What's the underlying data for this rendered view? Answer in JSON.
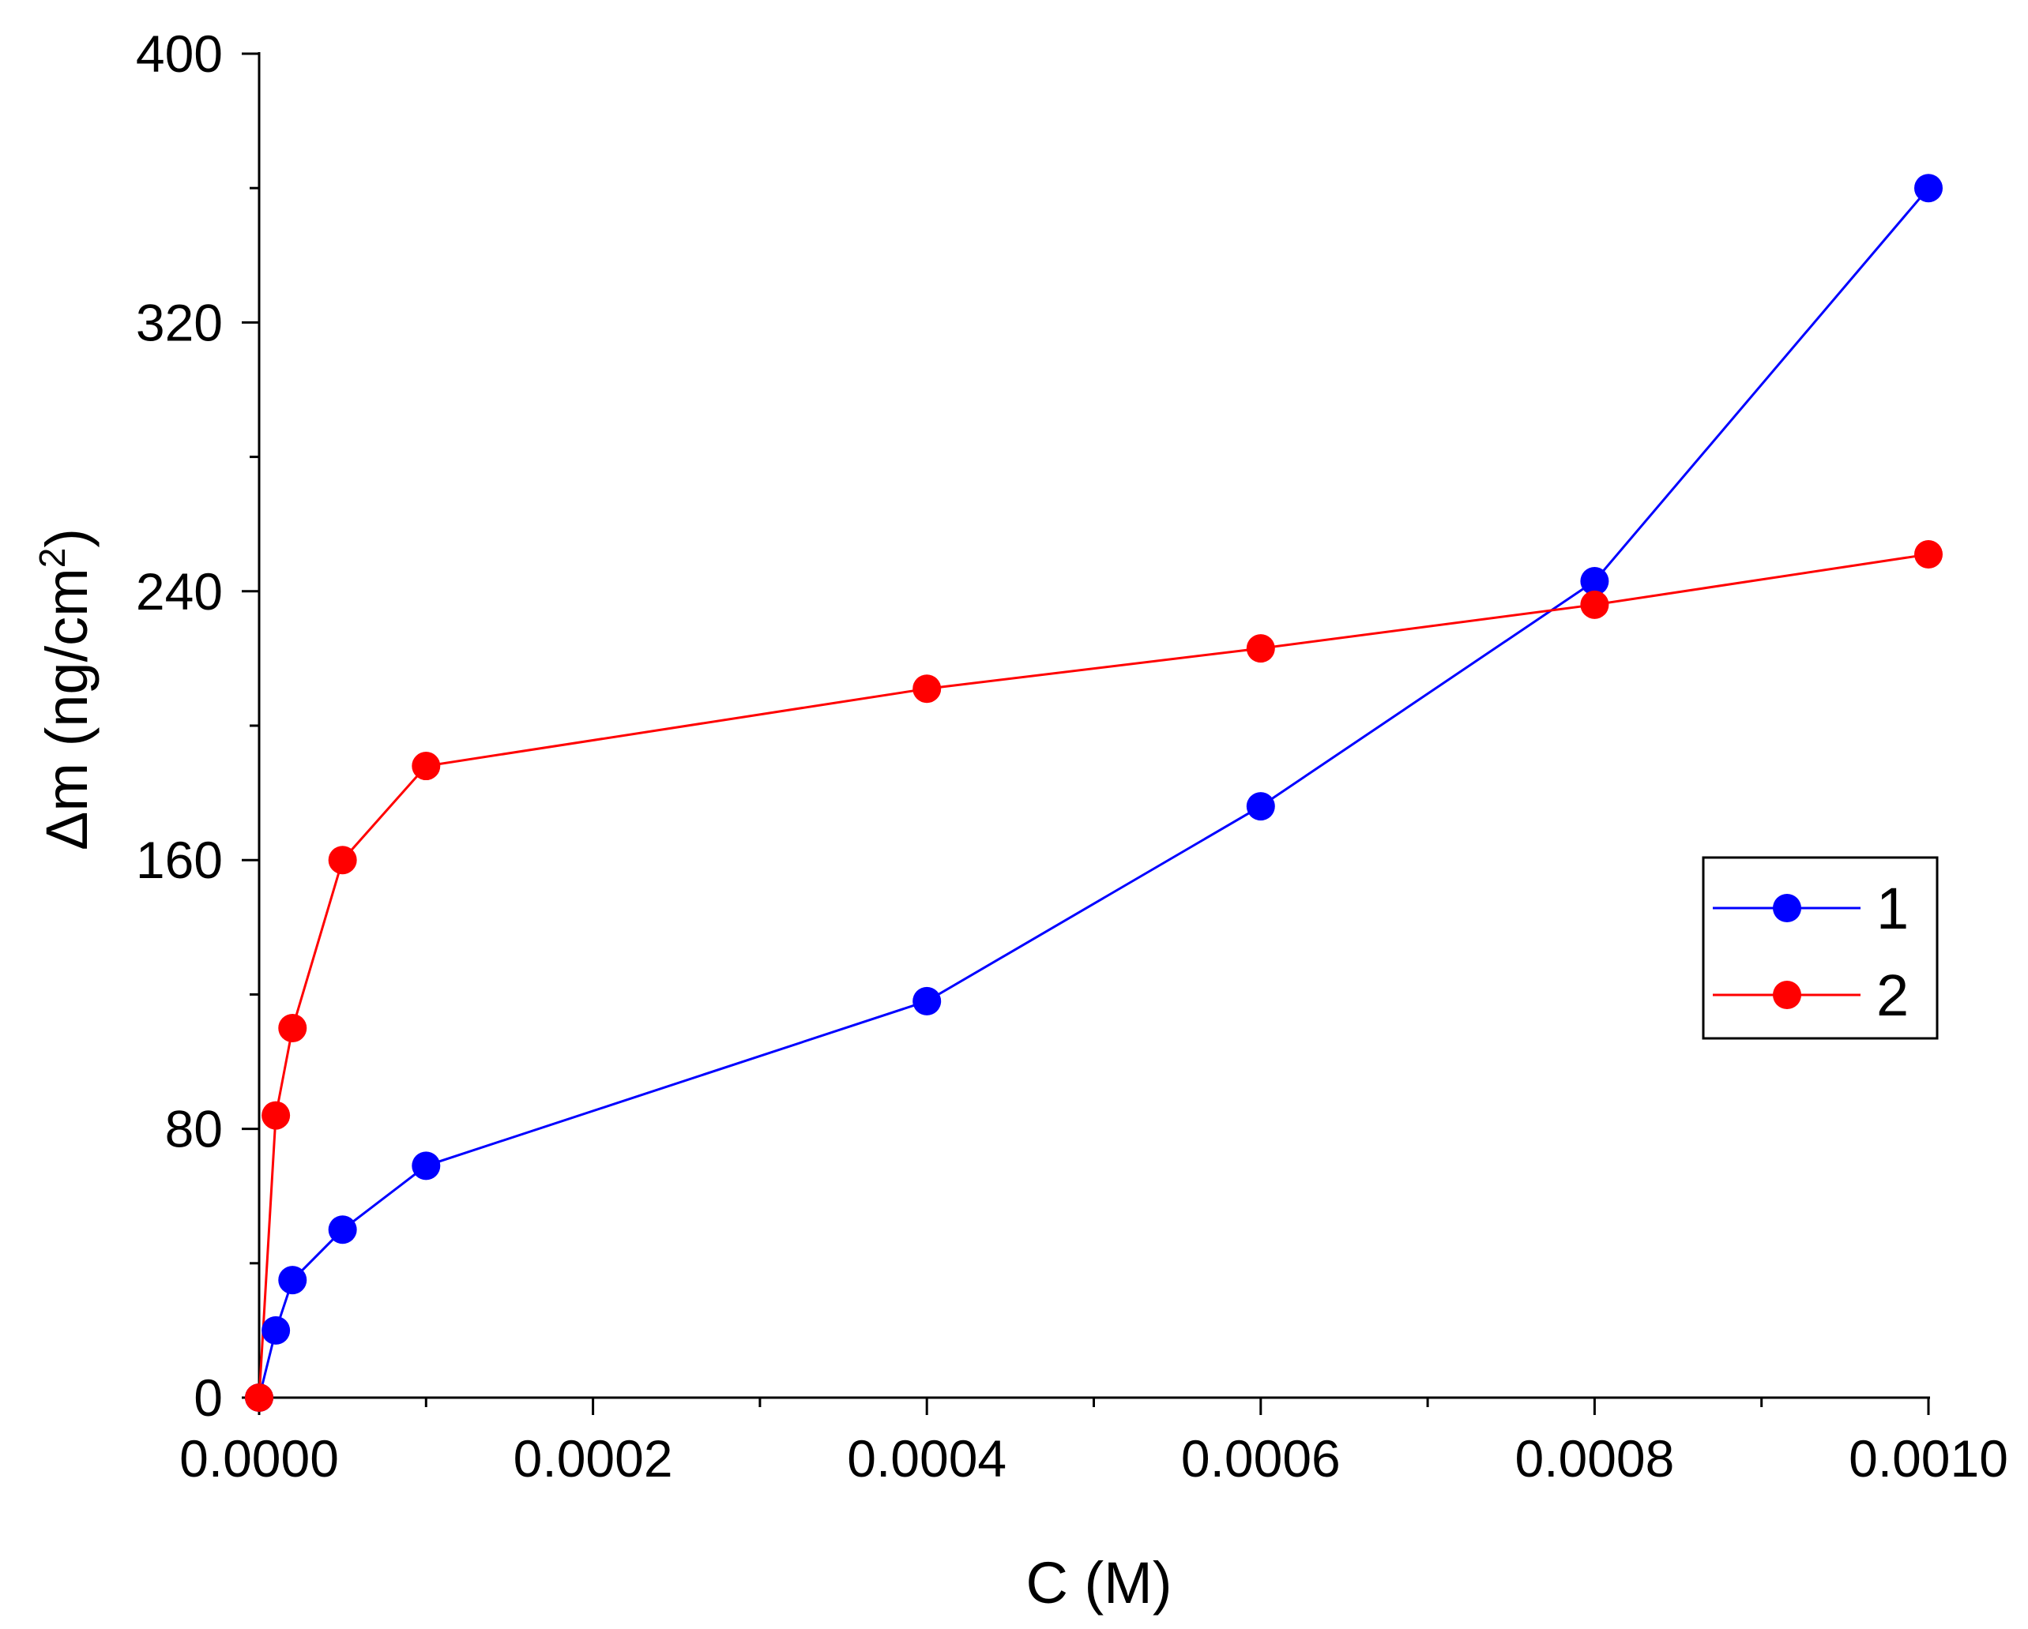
{
  "chart_data": {
    "type": "line",
    "title": "",
    "xlabel": "C (M)",
    "ylabel_main": "Δm (ng/cm",
    "ylabel_sup": "2",
    "ylabel_close": ")",
    "xlim": [
      0,
      0.001
    ],
    "ylim": [
      0,
      400
    ],
    "x_ticks": [
      {
        "value": 0.0,
        "label": "0.0000"
      },
      {
        "value": 0.0002,
        "label": "0.0002"
      },
      {
        "value": 0.0004,
        "label": "0.0004"
      },
      {
        "value": 0.0006,
        "label": "0.0006"
      },
      {
        "value": 0.0008,
        "label": "0.0008"
      },
      {
        "value": 0.001,
        "label": "0.0010"
      }
    ],
    "x_minor_ticks": [
      0.0001,
      0.0003,
      0.0005,
      0.0007,
      0.0009
    ],
    "y_ticks": [
      {
        "value": 0,
        "label": "0"
      },
      {
        "value": 80,
        "label": "80"
      },
      {
        "value": 160,
        "label": "160"
      },
      {
        "value": 240,
        "label": "240"
      },
      {
        "value": 320,
        "label": "320"
      },
      {
        "value": 400,
        "label": "400"
      }
    ],
    "y_minor_ticks": [
      40,
      120,
      200,
      280,
      360
    ],
    "grid": false,
    "legend_position": "center-right",
    "series": [
      {
        "name": "1",
        "color": "#0000ff",
        "x": [
          0,
          1e-05,
          2e-05,
          5e-05,
          0.0001,
          0.0004,
          0.0006,
          0.0008,
          0.001
        ],
        "y": [
          0,
          20,
          35,
          50,
          69,
          118,
          176,
          243,
          360
        ]
      },
      {
        "name": "2",
        "color": "#ff0000",
        "x": [
          0,
          1e-05,
          2e-05,
          5e-05,
          0.0001,
          0.0004,
          0.0006,
          0.0008,
          0.001
        ],
        "y": [
          0,
          84,
          110,
          160,
          188,
          211,
          223,
          236,
          251
        ]
      }
    ]
  }
}
